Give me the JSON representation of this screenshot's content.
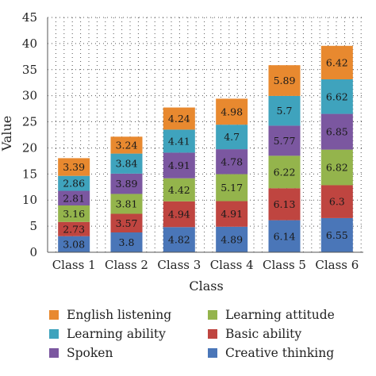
{
  "chart_data": {
    "type": "bar",
    "stacked": true,
    "title": "",
    "xlabel": "Class",
    "ylabel": "Value",
    "ylim": [
      0,
      45
    ],
    "yticks": [
      0,
      5,
      10,
      15,
      20,
      25,
      30,
      35,
      40,
      45
    ],
    "grid": true,
    "legend_position": "bottom",
    "categories": [
      "Class 1",
      "Class 2",
      "Class 3",
      "Class 4",
      "Class 5",
      "Class 6"
    ],
    "series": [
      {
        "name": "Creative thinking",
        "color": "#4a76b8",
        "values": [
          3.08,
          3.8,
          4.82,
          4.89,
          6.14,
          6.55
        ]
      },
      {
        "name": "Basic ability",
        "color": "#bf4540",
        "values": [
          2.73,
          3.57,
          4.94,
          4.91,
          6.13,
          6.3
        ]
      },
      {
        "name": "Learning attitude",
        "color": "#94b44c",
        "values": [
          3.16,
          3.81,
          4.42,
          5.17,
          6.22,
          6.82
        ]
      },
      {
        "name": "Spoken",
        "color": "#7b57a0",
        "values": [
          2.81,
          3.89,
          4.91,
          4.78,
          5.77,
          6.85
        ]
      },
      {
        "name": "Learning ability",
        "color": "#3fa3bd",
        "values": [
          2.86,
          3.84,
          4.41,
          4.7,
          5.7,
          6.62
        ]
      },
      {
        "name": "English listening",
        "color": "#e8892f",
        "values": [
          3.39,
          3.24,
          4.24,
          4.98,
          5.89,
          6.42
        ]
      }
    ],
    "legend_order": [
      "English listening",
      "Learning attitude",
      "Learning ability",
      "Basic ability",
      "Spoken",
      "Creative thinking"
    ]
  }
}
